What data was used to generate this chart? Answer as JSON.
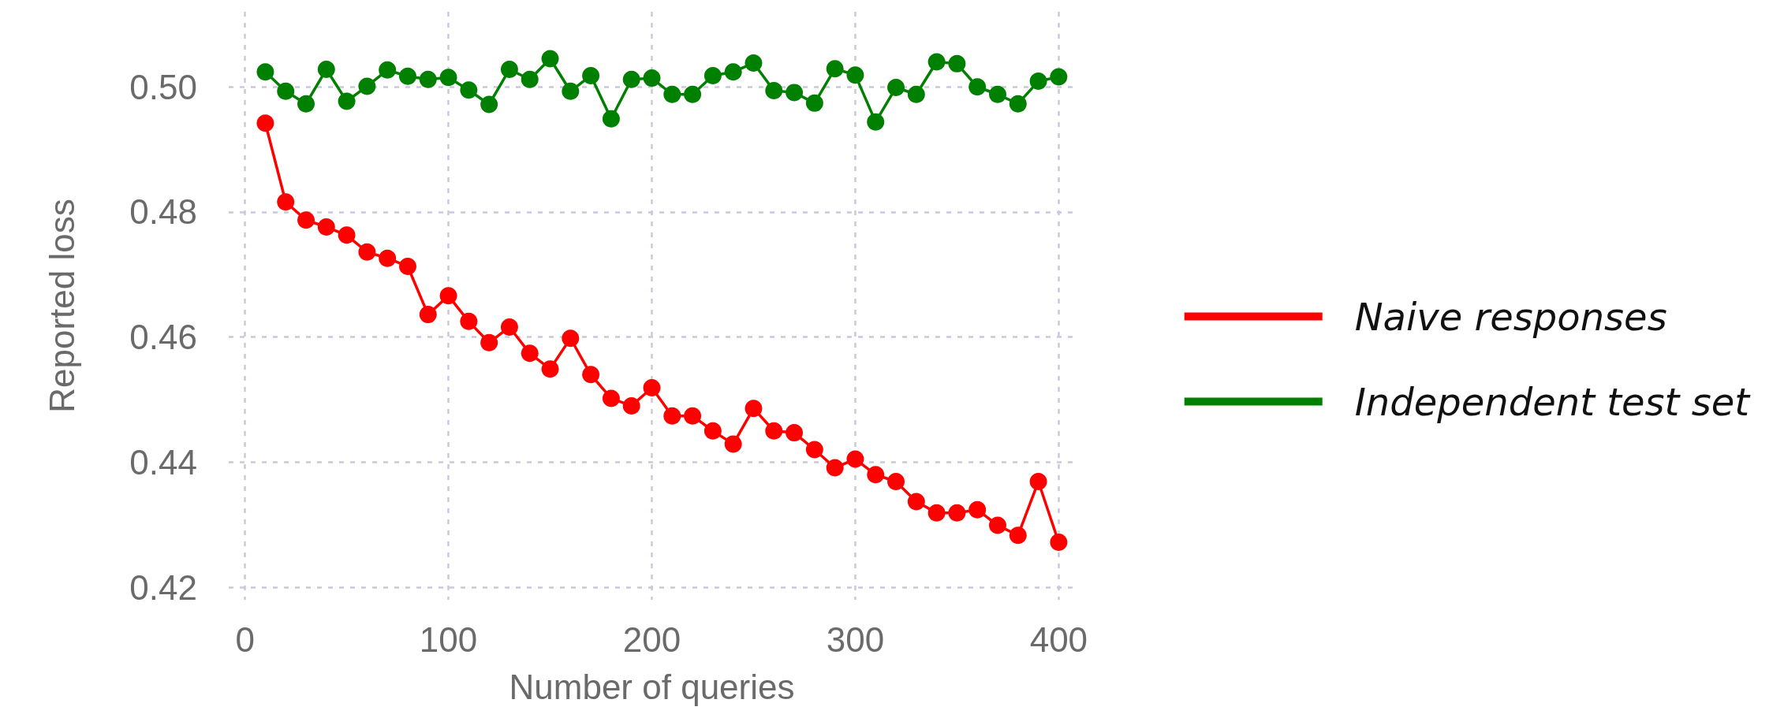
{
  "chart_data": {
    "type": "line",
    "xlabel": "Number of queries",
    "ylabel": "Reported loss",
    "x": [
      10,
      20,
      30,
      40,
      50,
      60,
      70,
      80,
      90,
      100,
      110,
      120,
      130,
      140,
      150,
      160,
      170,
      180,
      190,
      200,
      210,
      220,
      230,
      240,
      250,
      260,
      270,
      280,
      290,
      300,
      310,
      320,
      330,
      340,
      350,
      360,
      370,
      380,
      390,
      400
    ],
    "series": [
      {
        "name": "Naive responses",
        "color": "#ff0000",
        "values": [
          0.4942,
          0.4816,
          0.4787,
          0.4776,
          0.4763,
          0.4736,
          0.4726,
          0.4713,
          0.4636,
          0.4666,
          0.4625,
          0.4591,
          0.4616,
          0.4574,
          0.4549,
          0.4598,
          0.454,
          0.4502,
          0.449,
          0.4519,
          0.4474,
          0.4474,
          0.445,
          0.4429,
          0.4486,
          0.445,
          0.4447,
          0.442,
          0.4391,
          0.4405,
          0.438,
          0.4369,
          0.4337,
          0.4319,
          0.4319,
          0.4324,
          0.4299,
          0.4283,
          0.4369,
          0.4272
        ]
      },
      {
        "name": "Independent test set",
        "color": "#008000",
        "values": [
          0.5024,
          0.4993,
          0.4973,
          0.5028,
          0.4977,
          0.5001,
          0.5027,
          0.5017,
          0.5012,
          0.5015,
          0.4995,
          0.4972,
          0.5028,
          0.5012,
          0.5045,
          0.4993,
          0.5018,
          0.4949,
          0.5012,
          0.5014,
          0.4988,
          0.4988,
          0.5018,
          0.5024,
          0.5038,
          0.4994,
          0.4991,
          0.4974,
          0.5029,
          0.5019,
          0.4944,
          0.4999,
          0.4988,
          0.504,
          0.5037,
          0.5,
          0.4988,
          0.4973,
          0.5009,
          0.5016
        ]
      }
    ],
    "xlim": [
      -8,
      408
    ],
    "xticks": [
      0,
      100,
      200,
      300,
      400
    ],
    "ylim": [
      0.418,
      0.512
    ],
    "yticks": [
      0.42,
      0.44,
      0.46,
      0.48,
      {
        "value": 0.5,
        "label": "0.50"
      }
    ],
    "grid": true,
    "legend": "right",
    "marker": "circle",
    "line_style": "solid"
  }
}
